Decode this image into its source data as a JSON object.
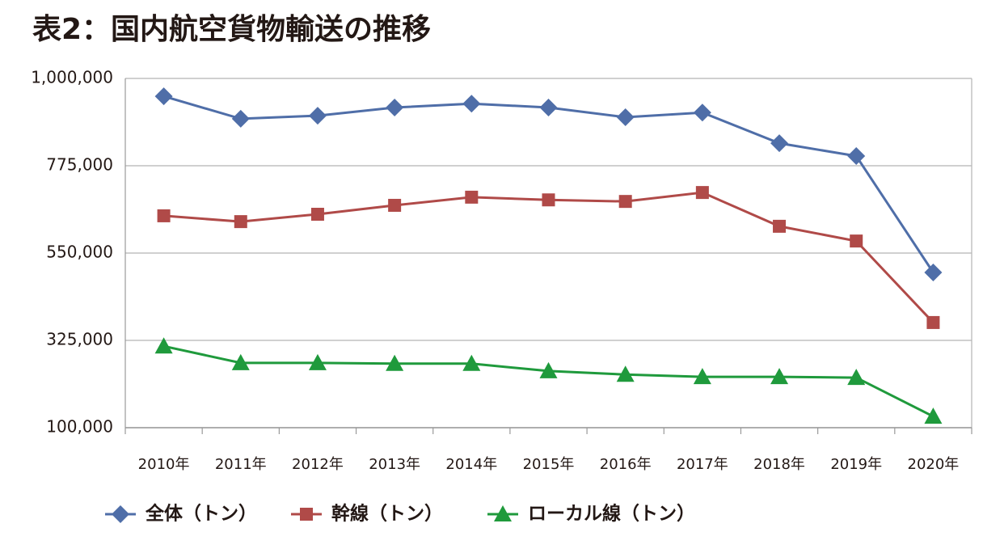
{
  "chart_data": {
    "type": "line",
    "title": "表2：国内航空貨物輸送の推移",
    "categories": [
      "2010年",
      "2011年",
      "2012年",
      "2013年",
      "2014年",
      "2015年",
      "2016年",
      "2017年",
      "2018年",
      "2019年",
      "2020年"
    ],
    "series": [
      {
        "name": "全体（トン）",
        "color": "#4f6ea8",
        "marker": "diamond",
        "values": [
          954000,
          896000,
          904000,
          925000,
          935000,
          925000,
          900000,
          912000,
          833000,
          800000,
          500000
        ]
      },
      {
        "name": "幹線（トン）",
        "color": "#b04a48",
        "marker": "square",
        "values": [
          646000,
          631000,
          650000,
          673000,
          694000,
          687000,
          683000,
          706000,
          619000,
          581000,
          371000
        ]
      },
      {
        "name": "ローカル線（トン）",
        "color": "#1f9a3c",
        "marker": "triangle",
        "values": [
          310000,
          267000,
          267000,
          265000,
          265000,
          246000,
          237000,
          231000,
          231000,
          229000,
          129000
        ]
      }
    ],
    "ylim": [
      100000,
      1000000
    ],
    "yticks": [
      {
        "value": 100000,
        "label": "100,000"
      },
      {
        "value": 325000,
        "label": "325,000"
      },
      {
        "value": 550000,
        "label": "550,000"
      },
      {
        "value": 775000,
        "label": "775,000"
      },
      {
        "value": 1000000,
        "label": "1,000,000"
      }
    ],
    "grid": true,
    "legend": "bottom"
  }
}
